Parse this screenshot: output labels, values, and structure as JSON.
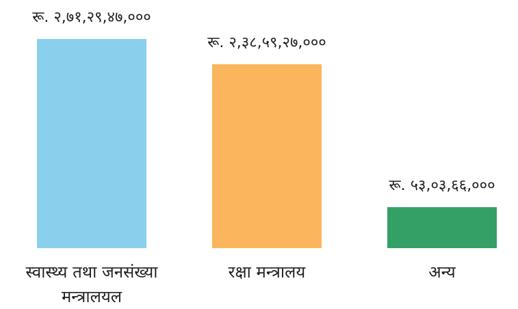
{
  "chart_data": {
    "type": "bar",
    "categories": [
      "स्वास्थ्य तथा जनसंख्या मन्त्रालयल",
      "रक्षा मन्त्रालय",
      "अन्य"
    ],
    "values": [
      2712947000,
      2385927000,
      530366000
    ],
    "value_labels": [
      "रू. २,७१,२९,४७,०००",
      "रू. २,३८,५९,२७,०००",
      "रू. ५३,०३,६६,०००"
    ],
    "colors": [
      "#8ad0ec",
      "#fbb55c",
      "#35a066"
    ]
  }
}
